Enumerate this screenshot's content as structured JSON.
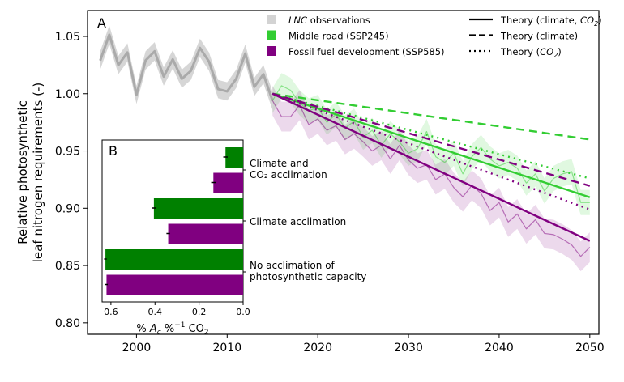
{
  "chart_data": [
    {
      "panel": "A",
      "type": "line",
      "ylabel": [
        "Relative photosynthetic",
        "leaf nitrogen requirements (-)"
      ],
      "xlim": [
        1994.6,
        2051
      ],
      "ylim": [
        0.79,
        1.0726
      ],
      "xticks": [
        2000,
        2010,
        2020,
        2030,
        2040,
        2050
      ],
      "yticks": [
        "0.80",
        "0.85",
        "0.90",
        "0.95",
        "1.00",
        "1.05"
      ],
      "grid": false,
      "colors": {
        "obs": "#aaaaaa",
        "ssp245": "#32cd32",
        "ssp585": "#800080"
      },
      "legend_left": [
        {
          "label_italic": "LNC",
          "label": " observations",
          "color": "#d3d3d3"
        },
        {
          "label_italic": "",
          "label": "Middle road (SSP245)",
          "color": "#32cd32"
        },
        {
          "label_italic": "",
          "label": "Fossil fuel development (SSP585)",
          "color": "#800080"
        }
      ],
      "legend_right": [
        {
          "label": "Theory (climate, ",
          "label_italic": "CO",
          "sub": "2",
          "tail": ")",
          "style": "solid"
        },
        {
          "label": "Theory (climate)",
          "label_italic": "",
          "sub": "",
          "tail": "",
          "style": "dashed"
        },
        {
          "label": "Theory (",
          "label_italic": "CO",
          "sub": "2",
          "tail": ")",
          "style": "dotted"
        }
      ],
      "observations": {
        "x": [
          1996,
          1997,
          1998,
          1999,
          2000,
          2001,
          2002,
          2003,
          2004,
          2005,
          2006,
          2007,
          2008,
          2009,
          2010,
          2011,
          2012,
          2013,
          2014,
          2015
        ],
        "y": [
          1.029,
          1.0515,
          1.025,
          1.036,
          0.999,
          1.029,
          1.037,
          1.015,
          1.03,
          1.013,
          1.02,
          1.04,
          1.028,
          1.004,
          1.002,
          1.013,
          1.035,
          1.006,
          1.017,
          0.994
        ],
        "band": 0.008
      },
      "projections": {
        "x_start": 2015,
        "x_end": 2050,
        "ssp245": {
          "y": [
            0.994,
            1.007,
            1.003,
            0.992,
            0.985,
            0.988,
            0.975,
            0.982,
            0.97,
            0.976,
            0.962,
            0.968,
            0.955,
            0.965,
            0.958,
            0.948,
            0.952,
            0.967,
            0.945,
            0.94,
            0.948,
            0.93,
            0.945,
            0.953,
            0.943,
            0.937,
            0.94,
            0.935,
            0.922,
            0.93,
            0.915,
            0.926,
            0.93,
            0.932,
            0.905,
            0.905
          ],
          "band": 0.011
        },
        "ssp585": {
          "y": [
            0.994,
            0.98,
            0.98,
            0.99,
            0.973,
            0.978,
            0.968,
            0.972,
            0.96,
            0.965,
            0.958,
            0.95,
            0.955,
            0.943,
            0.955,
            0.942,
            0.935,
            0.938,
            0.925,
            0.93,
            0.918,
            0.91,
            0.92,
            0.913,
            0.898,
            0.905,
            0.888,
            0.895,
            0.882,
            0.89,
            0.878,
            0.877,
            0.873,
            0.868,
            0.858,
            0.866
          ],
          "band": 0.013
        }
      },
      "theory": [
        {
          "scenario": "ssp245",
          "style": "solid",
          "y": [
            1.0,
            0.9096
          ]
        },
        {
          "scenario": "ssp245",
          "style": "dashed",
          "y": [
            1.0,
            0.96
          ]
        },
        {
          "scenario": "ssp245",
          "style": "dotted",
          "y": [
            1.0,
            0.926
          ]
        },
        {
          "scenario": "ssp585",
          "style": "solid",
          "y": [
            1.0,
            0.8715
          ]
        },
        {
          "scenario": "ssp585",
          "style": "dashed",
          "y": [
            1.0,
            0.9195
          ]
        },
        {
          "scenario": "ssp585",
          "style": "dotted",
          "y": [
            1.0,
            0.899
          ]
        }
      ]
    },
    {
      "panel": "B",
      "type": "bar",
      "orientation": "horizontal",
      "xlabel": {
        "pre": "% ",
        "italic": "A",
        "sub": "c",
        "mid": " %",
        "sup": "−1",
        "post": " CO",
        "sub2": "2"
      },
      "xlim": [
        0.64,
        0.0
      ],
      "xticks": [
        "0.6",
        "0.4",
        "0.2",
        "0.0"
      ],
      "categories": [
        {
          "lines": [
            "Climate and",
            "CO₂ acclimation"
          ]
        },
        {
          "lines": [
            "Climate acclimation"
          ]
        },
        {
          "lines": [
            "No acclimation of",
            "photosynthetic capacity"
          ]
        }
      ],
      "series": [
        {
          "scenario": "ssp245",
          "color": "#008000",
          "values": [
            0.08,
            0.405,
            0.625
          ],
          "err": [
            0.01,
            0.008,
            0.006
          ]
        },
        {
          "scenario": "ssp585",
          "color": "#800080",
          "values": [
            0.135,
            0.34,
            0.62
          ],
          "err": [
            0.01,
            0.008,
            0.006
          ]
        }
      ]
    }
  ]
}
